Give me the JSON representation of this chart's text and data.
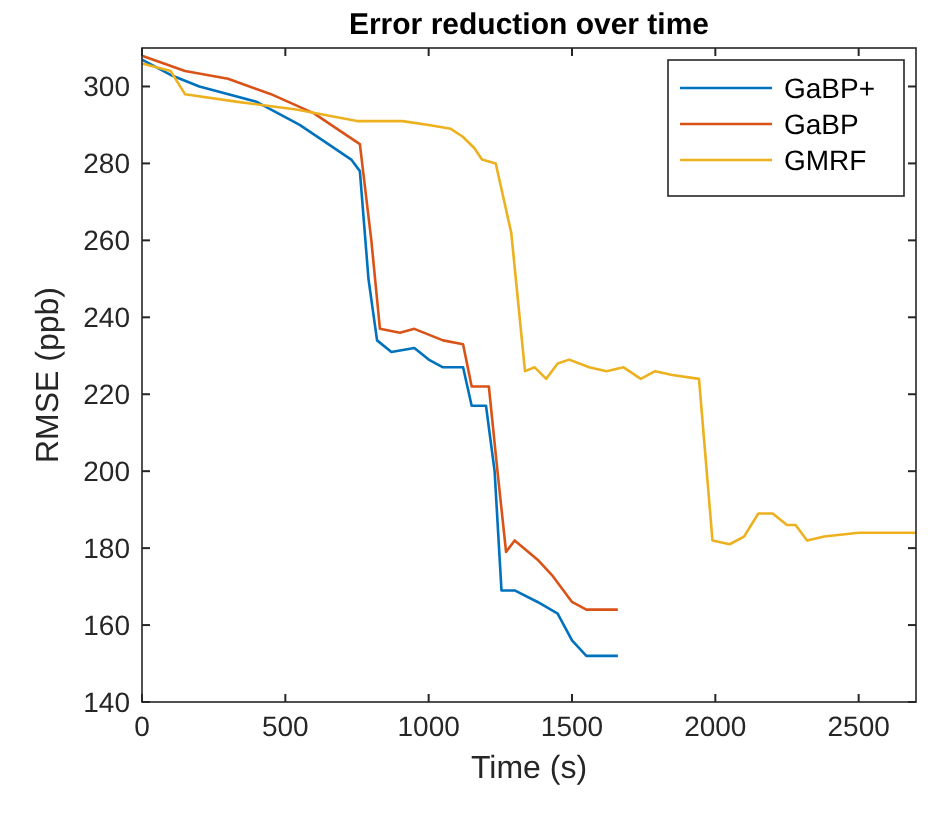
{
  "chart_data": {
    "type": "line",
    "title": "Error reduction over time",
    "xlabel": "Time (s)",
    "ylabel": "RMSE (ppb)",
    "xlim": [
      0,
      2700
    ],
    "ylim": [
      140,
      310
    ],
    "xticks": [
      0,
      500,
      1000,
      1500,
      2000,
      2500
    ],
    "yticks": [
      140,
      160,
      180,
      200,
      220,
      240,
      260,
      280,
      300
    ],
    "legend": "top right",
    "line_style": "solid",
    "marker": "none",
    "grid": false,
    "series": [
      {
        "name": "GaBP+",
        "color": "#0072bd",
        "x": [
          0,
          100,
          200,
          400,
          550,
          650,
          730,
          760,
          790,
          820,
          870,
          950,
          1000,
          1050,
          1120,
          1150,
          1200,
          1230,
          1254,
          1300,
          1380,
          1450,
          1500,
          1550,
          1660
        ],
        "values": [
          307,
          303,
          300,
          296,
          290,
          285,
          281,
          278,
          250,
          234,
          231,
          232,
          229,
          227,
          227,
          217,
          217,
          200,
          169,
          169,
          166,
          163,
          156,
          152,
          152
        ]
      },
      {
        "name": "GaBP",
        "color": "#d95319",
        "x": [
          0,
          150,
          300,
          450,
          600,
          700,
          760,
          800,
          830,
          900,
          950,
          1050,
          1120,
          1150,
          1210,
          1240,
          1270,
          1300,
          1380,
          1430,
          1500,
          1550,
          1660
        ],
        "values": [
          308,
          304,
          302,
          298,
          293,
          288,
          285,
          260,
          237,
          236,
          237,
          234,
          233,
          222,
          222,
          200,
          179,
          182,
          177,
          173,
          166,
          164,
          164
        ]
      },
      {
        "name": "GMRF",
        "color": "#edb120",
        "x": [
          0,
          100,
          150,
          334,
          538,
          750,
          909,
          1000,
          1077,
          1118,
          1159,
          1186,
          1234,
          1288,
          1336,
          1370,
          1410,
          1450,
          1490,
          1560,
          1620,
          1680,
          1740,
          1790,
          1850,
          1943,
          1990,
          2050,
          2100,
          2150,
          2200,
          2250,
          2280,
          2320,
          2380,
          2500,
          2700
        ],
        "values": [
          306,
          304,
          298,
          296,
          294,
          291,
          291,
          290,
          289,
          287,
          284,
          281,
          280,
          262,
          226,
          227,
          224,
          228,
          229,
          227,
          226,
          227,
          224,
          226,
          225,
          224,
          182,
          181,
          183,
          189,
          189,
          186,
          186,
          182,
          183,
          184,
          184
        ]
      }
    ]
  }
}
